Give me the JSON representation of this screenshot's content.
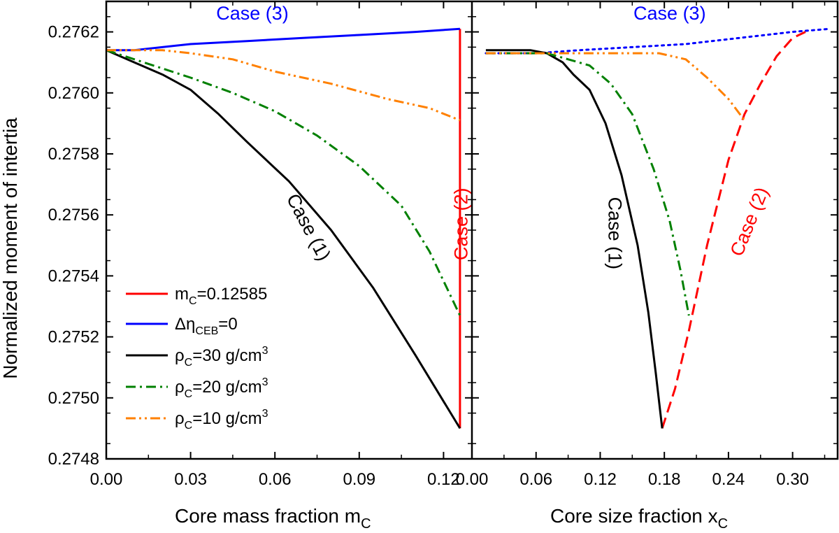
{
  "figure": {
    "ylabel": "Normalized moment of intertia",
    "ytick_labels": [
      "0.2748",
      "0.2750",
      "0.2752",
      "0.2754",
      "0.2756",
      "0.2758",
      "0.2760",
      "0.2762"
    ]
  },
  "legend": [
    {
      "main": "m",
      "sub": "C",
      "rest": "=0.12585",
      "sup": "",
      "color": "#ff0000",
      "dash": "solid"
    },
    {
      "main": "Δη",
      "sub": "CEB",
      "rest": "=0",
      "sup": "",
      "color": "#0000ff",
      "dash": "solid"
    },
    {
      "main": "ρ",
      "sub": "C",
      "rest": "=30 g/cm",
      "sup": "3",
      "color": "#000000",
      "dash": "solid"
    },
    {
      "main": "ρ",
      "sub": "C",
      "rest": "=20 g/cm",
      "sup": "3",
      "color": "#008000",
      "dash": "dashdot"
    },
    {
      "main": "ρ",
      "sub": "C",
      "rest": "=10 g/cm",
      "sup": "3",
      "color": "#ff8000",
      "dash": "dashdotdot"
    }
  ],
  "chart_data": [
    {
      "type": "line",
      "xlabel_main": "Core mass fraction m",
      "xlabel_sub": "C",
      "xlim": [
        0,
        0.1301
      ],
      "ylim": [
        0.2748,
        0.2763
      ],
      "xtick_labels": [
        "0.00",
        "0.03",
        "0.06",
        "0.09",
        "0.12"
      ],
      "xticks": [
        0,
        0.03,
        0.06,
        0.09,
        0.12
      ],
      "series": [
        {
          "name": "mC=0.12585",
          "color": "#ff0000",
          "dash": "solid",
          "x": [
            0.12585,
            0.12585
          ],
          "y": [
            0.2749,
            0.27621
          ]
        },
        {
          "name": "Δη_CEB=0",
          "color": "#0000ff",
          "dash": "solid",
          "x": [
            0.0,
            0.01,
            0.03,
            0.05,
            0.07,
            0.09,
            0.11,
            0.12585
          ],
          "y": [
            0.27614,
            0.27614,
            0.27616,
            0.27617,
            0.27618,
            0.27619,
            0.2762,
            0.27621
          ]
        },
        {
          "name": "ρC=30 g/cm3",
          "color": "#000000",
          "dash": "solid",
          "x": [
            0.0,
            0.01,
            0.02,
            0.03,
            0.04,
            0.05,
            0.065,
            0.08,
            0.095,
            0.11,
            0.12585
          ],
          "y": [
            0.27614,
            0.2761,
            0.27606,
            0.27601,
            0.27593,
            0.27584,
            0.27571,
            0.27555,
            0.27536,
            0.27514,
            0.2749
          ]
        },
        {
          "name": "ρC=20 g/cm3",
          "color": "#008000",
          "dash": "dashdot",
          "x": [
            0.0,
            0.01,
            0.02,
            0.03,
            0.045,
            0.06,
            0.075,
            0.09,
            0.105,
            0.115,
            0.12585
          ],
          "y": [
            0.27614,
            0.27611,
            0.27608,
            0.27605,
            0.276,
            0.27594,
            0.27586,
            0.27576,
            0.27563,
            0.27548,
            0.27527
          ]
        },
        {
          "name": "ρC=10 g/cm3",
          "color": "#ff8000",
          "dash": "dashdotdot",
          "x": [
            0.0,
            0.02,
            0.03,
            0.045,
            0.06,
            0.08,
            0.1,
            0.115,
            0.12585
          ],
          "y": [
            0.27614,
            0.27614,
            0.27613,
            0.27611,
            0.27607,
            0.27603,
            0.27598,
            0.27595,
            0.27591
          ]
        }
      ],
      "annotations": [
        {
          "text": "Case (3)",
          "color": "#0000ff",
          "x": 0.052,
          "y": 0.27624,
          "rotate": 0
        },
        {
          "text": "Case (1)",
          "color": "#000000",
          "x": 0.07,
          "y": 0.27555,
          "rotate": 62
        },
        {
          "text": "Case (2)",
          "color": "#ff0000",
          "x": 0.1285,
          "y": 0.27557,
          "rotate": -90
        }
      ]
    },
    {
      "type": "line",
      "xlabel_main": "Core size fraction x",
      "xlabel_sub": "C",
      "xlim": [
        0.0,
        0.3421
      ],
      "ylim": [
        0.2748,
        0.2763
      ],
      "xtick_labels": [
        "0.00",
        "0.06",
        "0.12",
        "0.18",
        "0.24",
        "0.30"
      ],
      "xticks": [
        0.0,
        0.06,
        0.12,
        0.18,
        0.24,
        0.3
      ],
      "series": [
        {
          "name": "Case (3) Δη_CEB=0",
          "color": "#0000ff",
          "dash": "dotted",
          "x": [
            0.013,
            0.06,
            0.1,
            0.15,
            0.2,
            0.25,
            0.3,
            0.335
          ],
          "y": [
            0.27613,
            0.27613,
            0.27614,
            0.27615,
            0.27616,
            0.27618,
            0.2762,
            0.27621
          ]
        },
        {
          "name": "Case (2) mC=0.12585",
          "color": "#ff0000",
          "dash": "dashed",
          "x": [
            0.178,
            0.19,
            0.203,
            0.22,
            0.24,
            0.255,
            0.27,
            0.285,
            0.3,
            0.312
          ],
          "y": [
            0.2749,
            0.27503,
            0.27522,
            0.2755,
            0.27578,
            0.27593,
            0.27603,
            0.27612,
            0.27618,
            0.2762
          ]
        },
        {
          "name": "ρC=30 g/cm3",
          "color": "#000000",
          "dash": "solid",
          "x": [
            0.013,
            0.04,
            0.055,
            0.07,
            0.085,
            0.095,
            0.11,
            0.125,
            0.14,
            0.155,
            0.165,
            0.172,
            0.178
          ],
          "y": [
            0.27614,
            0.27614,
            0.27614,
            0.27613,
            0.2761,
            0.27606,
            0.27601,
            0.2759,
            0.27573,
            0.2755,
            0.27528,
            0.27508,
            0.2749
          ]
        },
        {
          "name": "ρC=20 g/cm3",
          "color": "#008000",
          "dash": "dashdot",
          "x": [
            0.013,
            0.05,
            0.07,
            0.09,
            0.11,
            0.13,
            0.15,
            0.17,
            0.185,
            0.195,
            0.203
          ],
          "y": [
            0.27613,
            0.27613,
            0.27613,
            0.27611,
            0.27609,
            0.27603,
            0.27593,
            0.27575,
            0.27558,
            0.27542,
            0.27527
          ]
        },
        {
          "name": "ρC=10 g/cm3",
          "color": "#ff8000",
          "dash": "dashdotdot",
          "x": [
            0.013,
            0.06,
            0.1,
            0.14,
            0.175,
            0.2,
            0.22,
            0.24,
            0.255
          ],
          "y": [
            0.27613,
            0.27613,
            0.27613,
            0.27613,
            0.27613,
            0.27611,
            0.27605,
            0.27598,
            0.27591
          ]
        }
      ],
      "annotations": [
        {
          "text": "Case (3)",
          "color": "#0000ff",
          "x": 0.185,
          "y": 0.27624,
          "rotate": 0
        },
        {
          "text": "Case (1)",
          "color": "#000000",
          "x": 0.128,
          "y": 0.27554,
          "rotate": 90
        },
        {
          "text": "Case (2)",
          "color": "#ff0000",
          "x": 0.265,
          "y": 0.27557,
          "rotate": -68
        }
      ]
    }
  ]
}
